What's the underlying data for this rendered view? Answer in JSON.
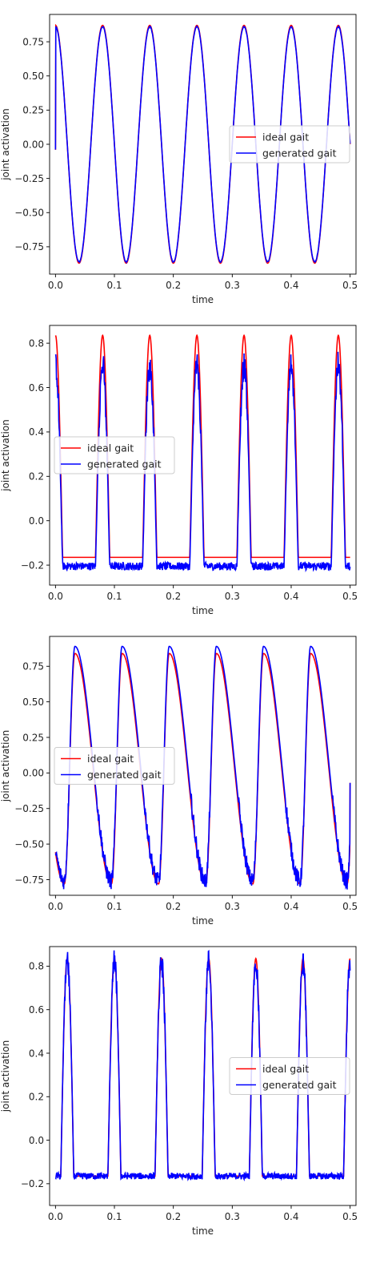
{
  "chart_data": [
    {
      "type": "line",
      "waveform": "sine",
      "xlabel": "time",
      "ylabel": "joint activation",
      "xlim": [
        -0.01,
        0.51
      ],
      "ylim": [
        -0.95,
        0.95
      ],
      "xticks": [
        0.0,
        0.1,
        0.2,
        0.3,
        0.4,
        0.5
      ],
      "xtick_labels": [
        "0.0",
        "0.1",
        "0.2",
        "0.3",
        "0.4",
        "0.5"
      ],
      "yticks": [
        -0.75,
        -0.5,
        -0.25,
        0.0,
        0.25,
        0.5,
        0.75
      ],
      "ytick_labels": [
        "−0.75",
        "−0.50",
        "−0.25",
        "0.00",
        "0.25",
        "0.50",
        "0.75"
      ],
      "legend_position": "center-right",
      "period": 0.08,
      "amplitude": 0.87,
      "phase_shift": 0.02,
      "noise": 0.008,
      "generated_amplitude": 0.86,
      "series": [
        {
          "name": "ideal gait",
          "color": "#ff0000"
        },
        {
          "name": "generated gait",
          "color": "#0000ff"
        }
      ],
      "x_range": [
        0.0,
        0.5
      ]
    },
    {
      "type": "line",
      "waveform": "pulse",
      "xlabel": "time",
      "ylabel": "joint activation",
      "xlim": [
        -0.01,
        0.51
      ],
      "ylim": [
        -0.29,
        0.88
      ],
      "xticks": [
        0.0,
        0.1,
        0.2,
        0.3,
        0.4,
        0.5
      ],
      "xtick_labels": [
        "0.0",
        "0.1",
        "0.2",
        "0.3",
        "0.4",
        "0.5"
      ],
      "yticks": [
        -0.2,
        0.0,
        0.2,
        0.4,
        0.6,
        0.8
      ],
      "ytick_labels": [
        "−0.2",
        "0.0",
        "0.2",
        "0.4",
        "0.6",
        "0.8"
      ],
      "legend_position": "center-left",
      "period": 0.08,
      "pulse_centers": [
        0.0,
        0.08,
        0.16,
        0.24,
        0.32,
        0.4,
        0.48
      ],
      "pulse_halfwidth": 0.012,
      "ideal_high": 0.835,
      "ideal_low": -0.165,
      "generated_high": 0.7,
      "generated_low": -0.205,
      "noise": 0.018,
      "series": [
        {
          "name": "ideal gait",
          "color": "#ff0000"
        },
        {
          "name": "generated gait",
          "color": "#0000ff"
        }
      ],
      "x_range": [
        0.0,
        0.5
      ]
    },
    {
      "type": "line",
      "waveform": "skewed",
      "xlabel": "time",
      "ylabel": "joint activation",
      "xlim": [
        -0.01,
        0.51
      ],
      "ylim": [
        -0.86,
        0.96
      ],
      "xticks": [
        0.0,
        0.1,
        0.2,
        0.3,
        0.4,
        0.5
      ],
      "xtick_labels": [
        "0.0",
        "0.1",
        "0.2",
        "0.3",
        "0.4",
        "0.5"
      ],
      "yticks": [
        -0.75,
        -0.5,
        -0.25,
        0.0,
        0.25,
        0.5,
        0.75
      ],
      "ytick_labels": [
        "−0.75",
        "−0.50",
        "−0.25",
        "0.00",
        "0.25",
        "0.50",
        "0.75"
      ],
      "legend_position": "center-left",
      "period": 0.08,
      "peaks": [
        0.033,
        0.113,
        0.193,
        0.273,
        0.353,
        0.433
      ],
      "ideal_max": 0.84,
      "ideal_min": -0.78,
      "generated_max": 0.89,
      "generated_min": -0.76,
      "generated_start": -0.58,
      "end_value": -0.07,
      "noise": 0.03,
      "series": [
        {
          "name": "ideal gait",
          "color": "#ff0000"
        },
        {
          "name": "generated gait",
          "color": "#0000ff"
        }
      ],
      "x_range": [
        0.0,
        0.5
      ]
    },
    {
      "type": "line",
      "waveform": "pulse",
      "xlabel": "time",
      "ylabel": "joint activation",
      "xlim": [
        -0.01,
        0.51
      ],
      "ylim": [
        -0.3,
        0.89
      ],
      "xticks": [
        0.0,
        0.1,
        0.2,
        0.3,
        0.4,
        0.5
      ],
      "xtick_labels": [
        "0.0",
        "0.1",
        "0.2",
        "0.3",
        "0.4",
        "0.5"
      ],
      "yticks": [
        -0.2,
        0.0,
        0.2,
        0.4,
        0.6,
        0.8
      ],
      "ytick_labels": [
        "−0.2",
        "0.0",
        "0.2",
        "0.4",
        "0.6",
        "0.8"
      ],
      "legend_position": "center-right",
      "period": 0.08,
      "pulse_centers": [
        0.02,
        0.1,
        0.18,
        0.26,
        0.34,
        0.42,
        0.5
      ],
      "pulse_halfwidth": 0.011,
      "ideal_high": 0.835,
      "ideal_low": -0.165,
      "generated_high": 0.82,
      "generated_low": -0.165,
      "noise": 0.015,
      "series": [
        {
          "name": "ideal gait",
          "color": "#ff0000"
        },
        {
          "name": "generated gait",
          "color": "#0000ff"
        }
      ],
      "x_range": [
        0.0,
        0.5
      ]
    }
  ]
}
